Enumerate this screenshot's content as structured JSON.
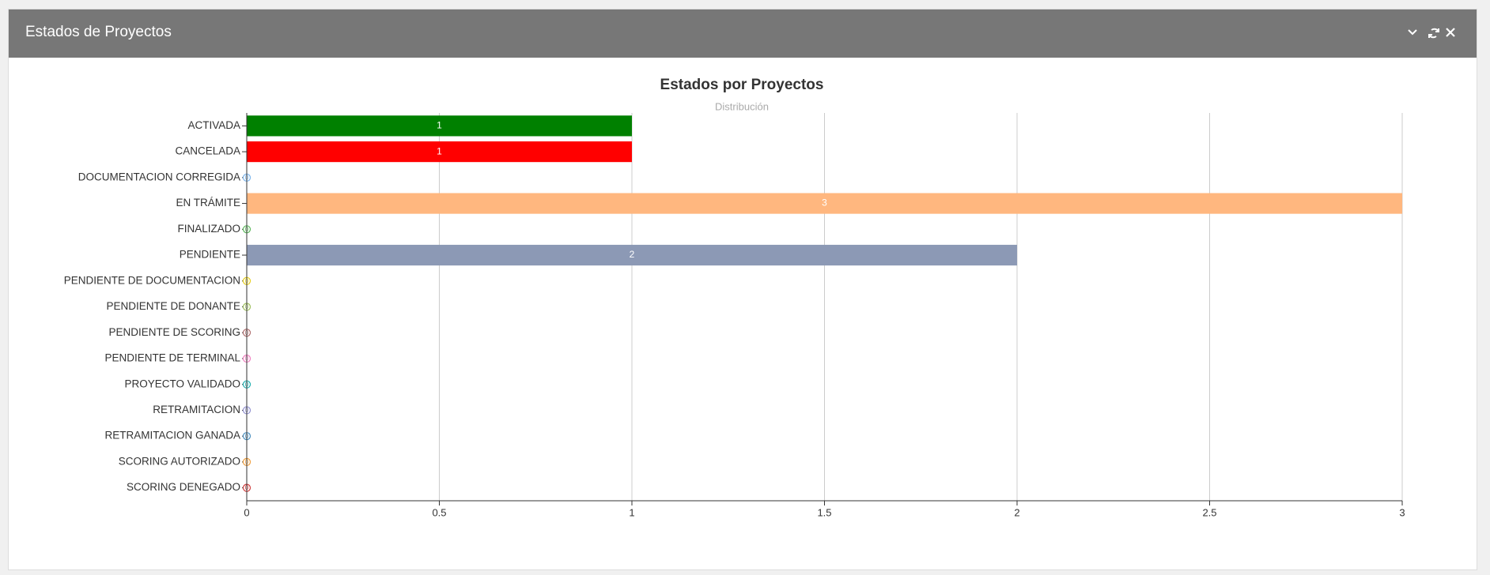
{
  "header": {
    "title": "Estados de Proyectos"
  },
  "chart_data": {
    "type": "bar",
    "orientation": "horizontal",
    "title": "Estados por Proyectos",
    "subtitle": "Distribución",
    "categories": [
      "ACTIVADA",
      "CANCELADA",
      "DOCUMENTACION CORREGIDA",
      "EN TRÁMITE",
      "FINALIZADO",
      "PENDIENTE",
      "PENDIENTE DE DOCUMENTACION",
      "PENDIENTE DE DONANTE",
      "PENDIENTE DE SCORING",
      "PENDIENTE DE TERMINAL",
      "PROYECTO VALIDADO",
      "RETRAMITACION",
      "RETRAMITACION GANADA",
      "SCORING AUTORIZADO",
      "SCORING DENEGADO"
    ],
    "values": [
      1,
      1,
      0,
      3,
      0,
      2,
      0,
      0,
      0,
      0,
      0,
      0,
      0,
      0,
      0
    ],
    "colors": [
      "#008000",
      "#ff0000",
      "#7cb5ec",
      "#ffb77f",
      "#5cb85c",
      "#8c99b5",
      "#e8d020",
      "#a0c060",
      "#b07070",
      "#f080c0",
      "#20b0b0",
      "#9090d0",
      "#4a90c0",
      "#f0a040",
      "#d04040"
    ],
    "xlim": [
      0,
      3
    ],
    "xticks": [
      0,
      0.5,
      1,
      1.5,
      2,
      2.5,
      3
    ],
    "grid": true
  }
}
